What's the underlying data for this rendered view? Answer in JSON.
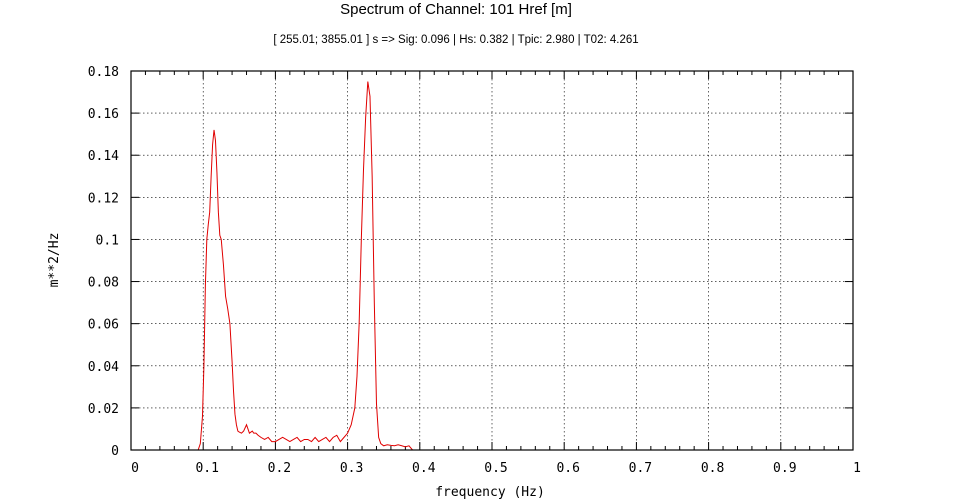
{
  "chart_data": {
    "type": "line",
    "title": "Spectrum of Channel: 101 Href [m]",
    "subtitle": "[ 255.01; 3855.01 ] s  =>  Sig: 0.096  |  Hs: 0.382  |  Tpic: 2.980  |  T02: 4.261",
    "xlabel": "frequency (Hz)",
    "ylabel": "m**2/Hz",
    "xlim": [
      0,
      1
    ],
    "ylim": [
      0,
      0.18
    ],
    "grid": true,
    "x_ticks": [
      "0",
      "0.1",
      "0.2",
      "0.3",
      "0.4",
      "0.5",
      "0.6",
      "0.7",
      "0.8",
      "0.9",
      "1"
    ],
    "y_ticks": [
      "0",
      "0.02",
      "0.04",
      "0.06",
      "0.08",
      "0.1",
      "0.12",
      "0.14",
      "0.16",
      "0.18"
    ],
    "series": [
      {
        "color": "#e00000",
        "x": [
          0.093,
          0.096,
          0.099,
          0.101,
          0.103,
          0.105,
          0.107,
          0.109,
          0.111,
          0.113,
          0.115,
          0.117,
          0.119,
          0.121,
          0.123,
          0.125,
          0.128,
          0.131,
          0.134,
          0.137,
          0.14,
          0.142,
          0.144,
          0.146,
          0.148,
          0.15,
          0.153,
          0.156,
          0.16,
          0.164,
          0.168,
          0.17,
          0.173,
          0.176,
          0.18,
          0.185,
          0.19,
          0.195,
          0.2,
          0.205,
          0.21,
          0.215,
          0.22,
          0.225,
          0.23,
          0.235,
          0.24,
          0.245,
          0.25,
          0.255,
          0.26,
          0.265,
          0.27,
          0.275,
          0.28,
          0.285,
          0.29,
          0.295,
          0.3,
          0.305,
          0.31,
          0.313,
          0.316,
          0.319,
          0.322,
          0.325,
          0.328,
          0.331,
          0.334,
          0.337,
          0.34,
          0.343,
          0.346,
          0.35,
          0.355,
          0.36,
          0.365,
          0.37,
          0.375,
          0.38,
          0.385,
          0.39
        ],
        "values": [
          0.0,
          0.003,
          0.016,
          0.04,
          0.078,
          0.1,
          0.107,
          0.113,
          0.13,
          0.145,
          0.152,
          0.147,
          0.132,
          0.113,
          0.102,
          0.1,
          0.088,
          0.073,
          0.067,
          0.06,
          0.042,
          0.028,
          0.017,
          0.012,
          0.009,
          0.0085,
          0.008,
          0.009,
          0.012,
          0.008,
          0.009,
          0.008,
          0.008,
          0.007,
          0.006,
          0.005,
          0.006,
          0.004,
          0.004,
          0.005,
          0.006,
          0.005,
          0.004,
          0.005,
          0.006,
          0.004,
          0.005,
          0.005,
          0.004,
          0.006,
          0.004,
          0.005,
          0.006,
          0.004,
          0.006,
          0.007,
          0.004,
          0.006,
          0.008,
          0.012,
          0.02,
          0.035,
          0.06,
          0.1,
          0.133,
          0.158,
          0.175,
          0.168,
          0.13,
          0.07,
          0.022,
          0.006,
          0.003,
          0.002,
          0.0025,
          0.0022,
          0.002,
          0.0025,
          0.002,
          0.0015,
          0.002,
          0.0
        ]
      }
    ]
  }
}
